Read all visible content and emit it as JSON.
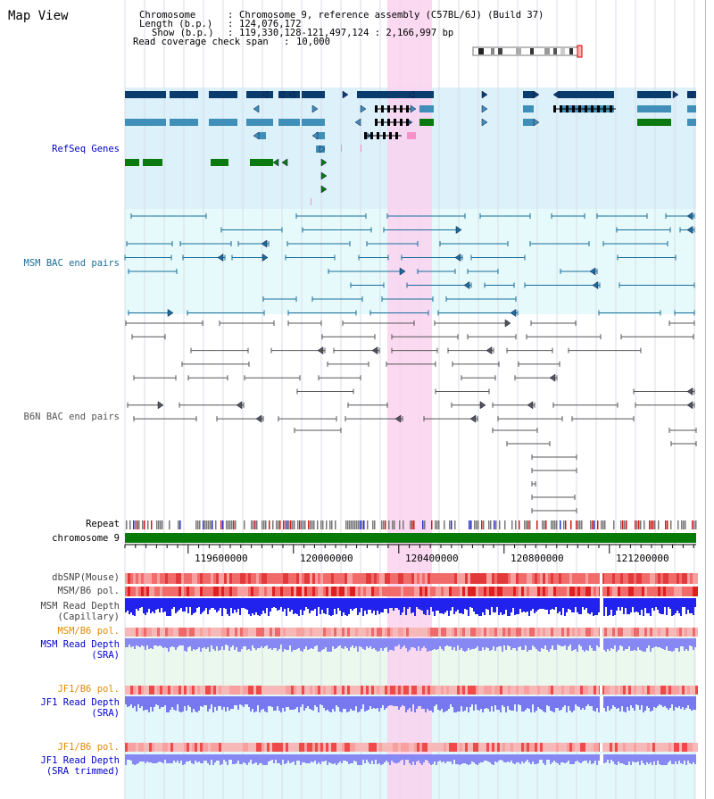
{
  "view_title": "Map View",
  "info": {
    "chromosome_key": "Chromosome",
    "chromosome_val": "Chromosome 9, reference assembly (C57BL/6J) (Build 37)",
    "length_key": "Length (b.p.)",
    "length_val": "124,076,172",
    "show_key": "Show (b.p.)",
    "show_val": "119,330,128-121,497,124 : 2,166,997 bp",
    "coverage_key": "Read coverage check span",
    "coverage_val": "10,000"
  },
  "tracks": {
    "refseq": "RefSeq Genes",
    "msm_bac": "MSM BAC end pairs",
    "b6n_bac": "B6N BAC end pairs",
    "repeat": "Repeat",
    "chromosome": "chromosome 9",
    "dbsnp": "dbSNP(Mouse)",
    "msm_b6_pol": "MSM/B6 pol.",
    "msm_depth_cap_1": "MSM Read Depth",
    "msm_depth_cap_2": "(Capillary)",
    "msm_b6_pol_sra": "MSM/B6 pol.",
    "msm_depth_sra_1": "MSM Read Depth",
    "msm_depth_sra_2": "(SRA)",
    "jf1_b6_pol_1": "JF1/B6 pol.",
    "jf1_depth_sra_1": "JF1 Read Depth",
    "jf1_depth_sra_2": "(SRA)",
    "jf1_b6_pol_2": "JF1/B6 pol.",
    "jf1_depth_trim_1": "JF1 Read Depth",
    "jf1_depth_trim_2": "(SRA trimmed)"
  },
  "axis_ticks": [
    "119600000",
    "120000000",
    "120400000",
    "120800000",
    "121200000"
  ],
  "colors": {
    "refseq_dark": "#0b3c6e",
    "refseq_mid": "#3f8fb8",
    "refseq_green": "#0a7a10",
    "msm_bac": "#1a6e9a",
    "b6n_bac": "#555555",
    "chromosome_bar": "#087a08",
    "highlight": "#f9d2ee",
    "msm_label": "#0000cc",
    "jf1_label": "#e08a00"
  }
}
